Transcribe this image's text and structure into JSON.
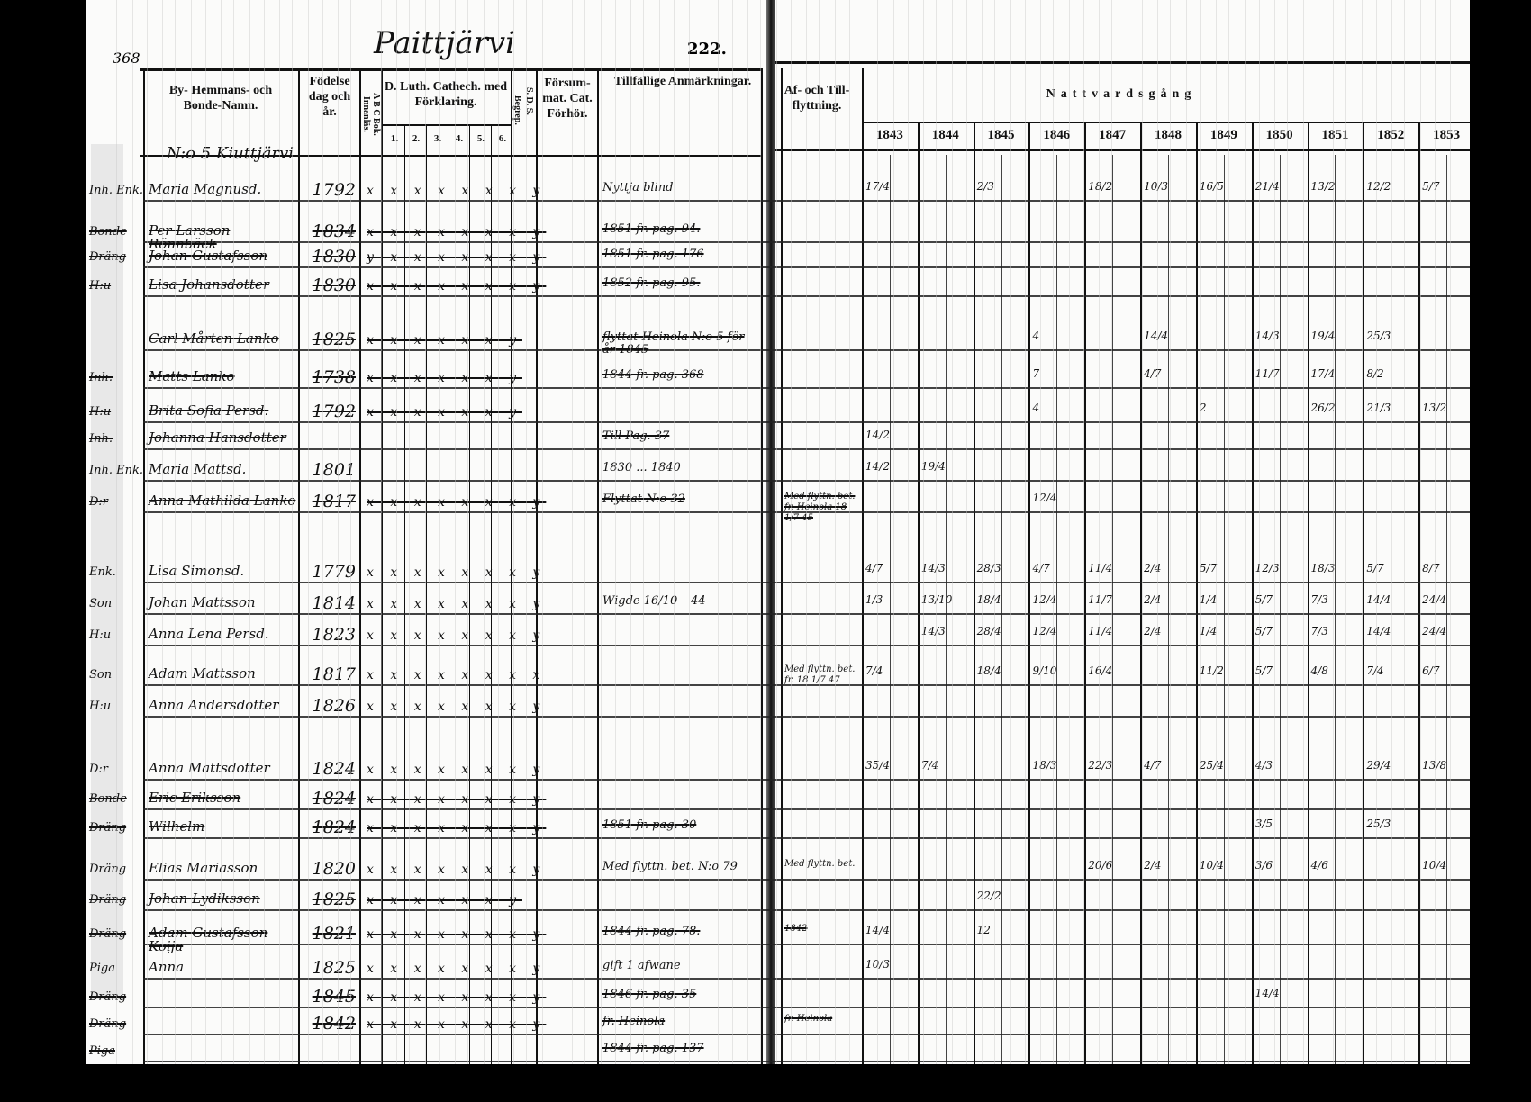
{
  "folio": "368",
  "village": "Paittjärvi",
  "page_number": "222.",
  "homestead": "N:o 5 Kiuttjärvi",
  "headers": {
    "name": "By- Hemmans- och Bonde-Namn.",
    "birth": "Födelse dag och år.",
    "abc": "A B C Bok. Innanläs.",
    "luth": "D. Luth. Cathech. med Förklaring.",
    "luth_cols": [
      "1.",
      "2.",
      "3.",
      "4.",
      "5.",
      "6."
    ],
    "begrep": "Begrep.",
    "sds": "S. D. S.",
    "forsum": "Försum-mat. Cat. Förhör.",
    "anm": "Tillfällige Anmärkningar.",
    "flytt": "Af- och Till-flyttning.",
    "nattvard": "Nattvardsgång",
    "years": [
      "1843",
      "1844",
      "1845",
      "1846",
      "1847",
      "1848",
      "1849",
      "1850",
      "1851",
      "1852",
      "1853"
    ]
  },
  "rows": [
    {
      "prefix": "Inh. Enk.",
      "name": "Maria Magnusd.",
      "birth": "1792",
      "struck": false,
      "catech": "x x x x x x x y",
      "remark": "Nyttja blind",
      "flytt": "",
      "communion": [
        "17/4",
        "",
        "2/3",
        "",
        "18/2",
        "10/3",
        "16/5",
        "21/4",
        "13/2",
        "12/2",
        "5/7"
      ]
    },
    {
      "prefix": "Bonde",
      "name": "Per Larsson Rönnbäck",
      "birth": "1834",
      "struck": true,
      "catech": "x x x x x x x y",
      "remark": "1851 fr. pag. 94.",
      "flytt": "",
      "communion": []
    },
    {
      "prefix": "Dräng",
      "name": "Johan Gustafsson",
      "birth": "1830",
      "struck": true,
      "catech": "y x x x x x x y",
      "remark": "1851 fr. pag. 176",
      "flytt": "",
      "communion": []
    },
    {
      "prefix": "H:u",
      "name": "Lisa Johansdotter",
      "birth": "1830",
      "struck": true,
      "catech": "x x x x x x x y",
      "remark": "1852 fr. pag. 95.",
      "flytt": "",
      "communion": []
    },
    {
      "prefix": "",
      "name": "Carl Mårten Lanko",
      "birth": "1825",
      "struck": true,
      "catech": "x x x x x x y",
      "remark": "flyttat Heinola N:o 5 för år 1845",
      "flytt": "",
      "communion": [
        "",
        "",
        "",
        "4",
        "",
        "14/4",
        "",
        "14/3",
        "19/4",
        "25/3",
        ""
      ]
    },
    {
      "prefix": "Inh.",
      "name": "Matts Lanko",
      "birth": "1738",
      "struck": true,
      "catech": "x x x x x x y",
      "remark": "1844 fr. pag. 368",
      "flytt": "",
      "communion": [
        "",
        "",
        "",
        "7",
        "",
        "4/7",
        "",
        "11/7",
        "17/4",
        "8/2",
        ""
      ]
    },
    {
      "prefix": "H:u",
      "name": "Brita Sofia Persd.",
      "birth": "1792",
      "struck": true,
      "catech": "x x x x x x y",
      "remark": "",
      "flytt": "",
      "communion": [
        "",
        "",
        "",
        "4",
        "",
        "",
        "2",
        "",
        "26/2",
        "21/3",
        "13/2"
      ]
    },
    {
      "prefix": "Inh.",
      "name": "Johanna Hansdotter",
      "birth": "",
      "struck": true,
      "catech": "",
      "remark": "Till Pag. 37",
      "flytt": "",
      "communion": [
        "14/2",
        "",
        "",
        "",
        "",
        "",
        "",
        "",
        "",
        "",
        ""
      ]
    },
    {
      "prefix": "Inh. Enk.",
      "name": "Maria Mattsd.",
      "birth": "1801",
      "struck": false,
      "catech": "",
      "remark": "1830 ... 1840",
      "flytt": "",
      "communion": [
        "14/2",
        "19/4",
        "",
        "",
        "",
        "",
        "",
        "",
        "",
        "",
        ""
      ]
    },
    {
      "prefix": "D:r",
      "name": "Anna Mathilda Lanko",
      "birth": "1817",
      "struck": true,
      "catech": "x x x x x x x y",
      "remark": "Flyttat N:o 32",
      "flytt": "Med flyttn. bet. fr. Heinola 18 1/7 45",
      "communion": [
        "",
        "",
        "",
        "12/4",
        "",
        "",
        "",
        "",
        "",
        "",
        ""
      ]
    },
    {
      "prefix": "Enk.",
      "name": "Lisa Simonsd.",
      "birth": "1779",
      "struck": false,
      "catech": "x x x x x x x y",
      "remark": "",
      "flytt": "",
      "communion": [
        "4/7",
        "14/3",
        "28/3",
        "4/7",
        "11/4",
        "2/4",
        "5/7",
        "12/3",
        "18/3",
        "5/7",
        "8/7"
      ]
    },
    {
      "prefix": "Son",
      "name": "Johan Mattsson",
      "birth": "1814",
      "struck": false,
      "catech": "x x x x x x x y",
      "remark": "Wigde 16/10 – 44",
      "flytt": "",
      "communion": [
        "1/3",
        "13/10",
        "18/4",
        "12/4",
        "11/7",
        "2/4",
        "1/4",
        "5/7",
        "7/3",
        "14/4",
        "24/4"
      ]
    },
    {
      "prefix": "H:u",
      "name": "Anna Lena Persd.",
      "birth": "1823",
      "struck": false,
      "catech": "x x x x x x x y",
      "remark": "",
      "flytt": "",
      "communion": [
        "",
        "14/3",
        "28/4",
        "12/4",
        "11/4",
        "2/4",
        "1/4",
        "5/7",
        "7/3",
        "14/4",
        "24/4"
      ]
    },
    {
      "prefix": "Son",
      "name": "Adam Mattsson",
      "birth": "1817",
      "struck": false,
      "catech": "x x x x x x x x",
      "remark": "",
      "flytt": "Med flyttn. bet. fr. 18 1/7 47",
      "communion": [
        "7/4",
        "",
        "18/4",
        "9/10",
        "16/4",
        "",
        "11/2",
        "5/7",
        "4/8",
        "7/4",
        "6/7"
      ]
    },
    {
      "prefix": "H:u",
      "name": "Anna Andersdotter",
      "birth": "1826",
      "struck": false,
      "catech": "x x x x x x x y",
      "remark": "",
      "flytt": "",
      "communion": []
    },
    {
      "prefix": "D:r",
      "name": "Anna Mattsdotter",
      "birth": "1824",
      "struck": false,
      "catech": "x x x x x x x y",
      "remark": "",
      "flytt": "",
      "communion": [
        "35/4",
        "7/4",
        "",
        "18/3",
        "22/3",
        "4/7",
        "25/4",
        "4/3",
        "",
        "29/4",
        "13/8"
      ]
    },
    {
      "prefix": "Bonde",
      "name": "Eric Eriksson",
      "birth": "1824",
      "struck": true,
      "catech": "x x x x x x x y",
      "remark": "",
      "flytt": "",
      "communion": []
    },
    {
      "prefix": "Dräng",
      "name": "Wilhelm",
      "birth": "1824",
      "struck": true,
      "catech": "x x x x x x x y",
      "remark": "1851 fr. pag. 30",
      "flytt": "",
      "communion": [
        "",
        "",
        "",
        "",
        "",
        "",
        "",
        "3/5",
        "",
        "25/3",
        ""
      ]
    },
    {
      "prefix": "Dräng",
      "name": "Elias Mariasson",
      "birth": "1820",
      "struck": false,
      "catech": "x x x x x x x y",
      "remark": "Med flyttn. bet. N:o 79",
      "flytt": "Med flyttn. bet.",
      "communion": [
        "",
        "",
        "",
        "",
        "20/6",
        "2/4",
        "10/4",
        "3/6",
        "4/6",
        "",
        "10/4"
      ]
    },
    {
      "prefix": "Dräng",
      "name": "Johan Lydiksson",
      "birth": "1825",
      "struck": true,
      "catech": "x x x x x x y",
      "remark": "",
      "flytt": "",
      "communion": [
        "",
        "",
        "22/2",
        "",
        "",
        "",
        "",
        "",
        "",
        "",
        ""
      ]
    },
    {
      "prefix": "Dräng",
      "name": "Adam Gustafsson Koija",
      "birth": "1821",
      "struck": true,
      "catech": "x x x x x x x y",
      "remark": "1844 fr. pag. 78.",
      "flytt": "1842",
      "communion": [
        "14/4",
        "",
        "12",
        "",
        "",
        "",
        "",
        "",
        "",
        "",
        ""
      ]
    },
    {
      "prefix": "Piga",
      "name": "Anna",
      "birth": "1825",
      "struck": false,
      "catech": "x x x x x x x y",
      "remark": "gift 1 afwane",
      "flytt": "",
      "communion": [
        "10/3",
        "",
        "",
        "",
        "",
        "",
        "",
        "",
        "",
        "",
        ""
      ]
    },
    {
      "prefix": "Dräng",
      "name": "",
      "birth": "1845",
      "struck": true,
      "catech": "x x x x x x x y",
      "remark": "1846 fr. pag. 35",
      "flytt": "",
      "communion": [
        "",
        "",
        "",
        "",
        "",
        "",
        "",
        "14/4",
        "",
        "",
        ""
      ]
    },
    {
      "prefix": "Dräng",
      "name": "",
      "birth": "1842",
      "struck": true,
      "catech": "x x x x x x x y",
      "remark": "fr. Heinola",
      "flytt": "fr. Heinola",
      "communion": []
    },
    {
      "prefix": "Piga",
      "name": "",
      "birth": "",
      "struck": true,
      "catech": "",
      "remark": "1844 fr. pag. 137",
      "flytt": "",
      "communion": []
    }
  ]
}
